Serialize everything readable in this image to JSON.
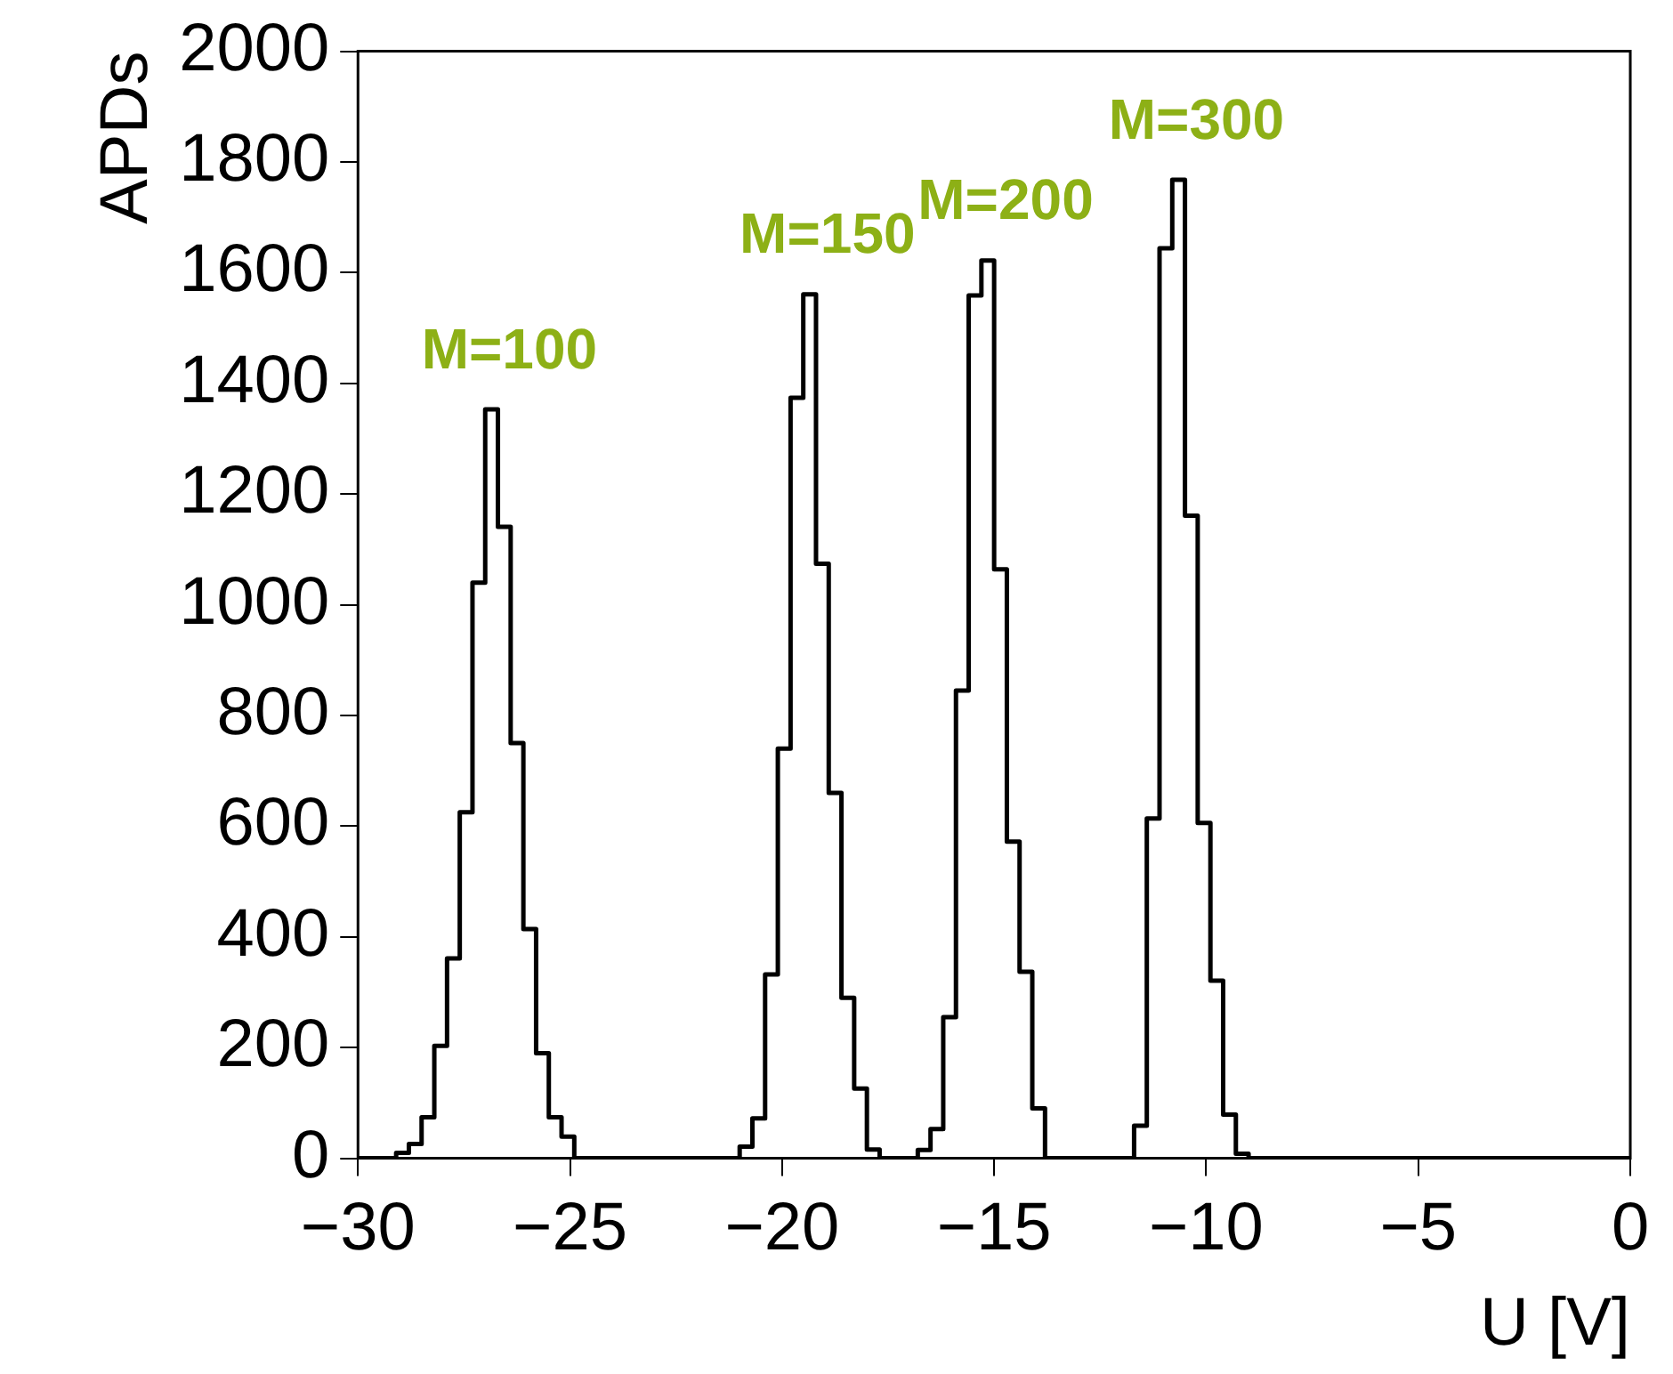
{
  "chart_data": {
    "type": "histogram",
    "xlabel": "U [V]",
    "ylabel": "APDs",
    "bins": [
      -30,
      -29.7,
      -29.4,
      -29.1,
      -28.8,
      -28.5,
      -28.2,
      -27.9,
      -27.6,
      -27.3,
      -27,
      -26.7,
      -26.4,
      -26.1,
      -25.8,
      -25.5,
      -25.2,
      -24.9,
      -24.6,
      -24.3,
      -24,
      -23.7,
      -23.4,
      -23.1,
      -22.8,
      -22.5,
      -22.2,
      -21.9,
      -21.6,
      -21.3,
      -21,
      -20.7,
      -20.4,
      -20.1,
      -19.8,
      -19.5,
      -19.2,
      -18.9,
      -18.6,
      -18.3,
      -18,
      -17.7,
      -17.4,
      -17.1,
      -16.8,
      -16.5,
      -16.2,
      -15.9,
      -15.6,
      -15.3,
      -15,
      -14.7,
      -14.4,
      -14.1,
      -13.8,
      -13.5,
      -13.2,
      -12.9,
      -12.6,
      -12.3,
      -12,
      -11.7,
      -11.4,
      -11.1,
      -10.8,
      -10.5,
      -10.2,
      -9.9,
      -9.6,
      -9.3,
      -9,
      -8.7,
      -8.4,
      -8.1,
      -7.8,
      -7.5,
      -7.2,
      -6.9,
      -6.6,
      -6.3,
      -6,
      -5.7,
      -5.4,
      -5.1,
      -4.8,
      -4.5,
      -4.2,
      -3.9,
      -3.6,
      -3.3,
      -3,
      -2.7,
      -2.4,
      -2.1,
      -1.8,
      -1.5,
      -1.2,
      -0.9,
      -0.6,
      -0.3,
      0
    ],
    "values": [
      0,
      0,
      0,
      10,
      26,
      74,
      203,
      361,
      625,
      1040,
      1353,
      1141,
      750,
      414,
      190,
      74,
      39,
      0,
      0,
      0,
      0,
      0,
      0,
      0,
      0,
      0,
      0,
      0,
      0,
      0,
      21,
      72,
      332,
      740,
      1374,
      1561,
      1074,
      660,
      290,
      126,
      16,
      0,
      0,
      0,
      15,
      53,
      255,
      845,
      1559,
      1622,
      1064,
      572,
      337,
      90,
      0,
      0,
      0,
      0,
      0,
      0,
      0,
      59,
      614,
      1644,
      1768,
      1161,
      606,
      321,
      79,
      8,
      0,
      0,
      0,
      0,
      0,
      0,
      0,
      0,
      0,
      0,
      0,
      0,
      0,
      0,
      0,
      0,
      0,
      0,
      0,
      0,
      0,
      0,
      0,
      0,
      0,
      0,
      0,
      0,
      0,
      0
    ],
    "color": "#000000",
    "xlim": [
      -30,
      0
    ],
    "xticks": [
      -30,
      -25,
      -20,
      -15,
      -10,
      -5,
      0
    ],
    "ylim": [
      0,
      2000
    ],
    "yticks": [
      0,
      200,
      400,
      600,
      800,
      1000,
      1200,
      1400,
      1600,
      1800,
      2000
    ],
    "grid": false,
    "legend": false,
    "annotations": [
      "M=100",
      "M=150",
      "M=200",
      "M=300"
    ]
  }
}
